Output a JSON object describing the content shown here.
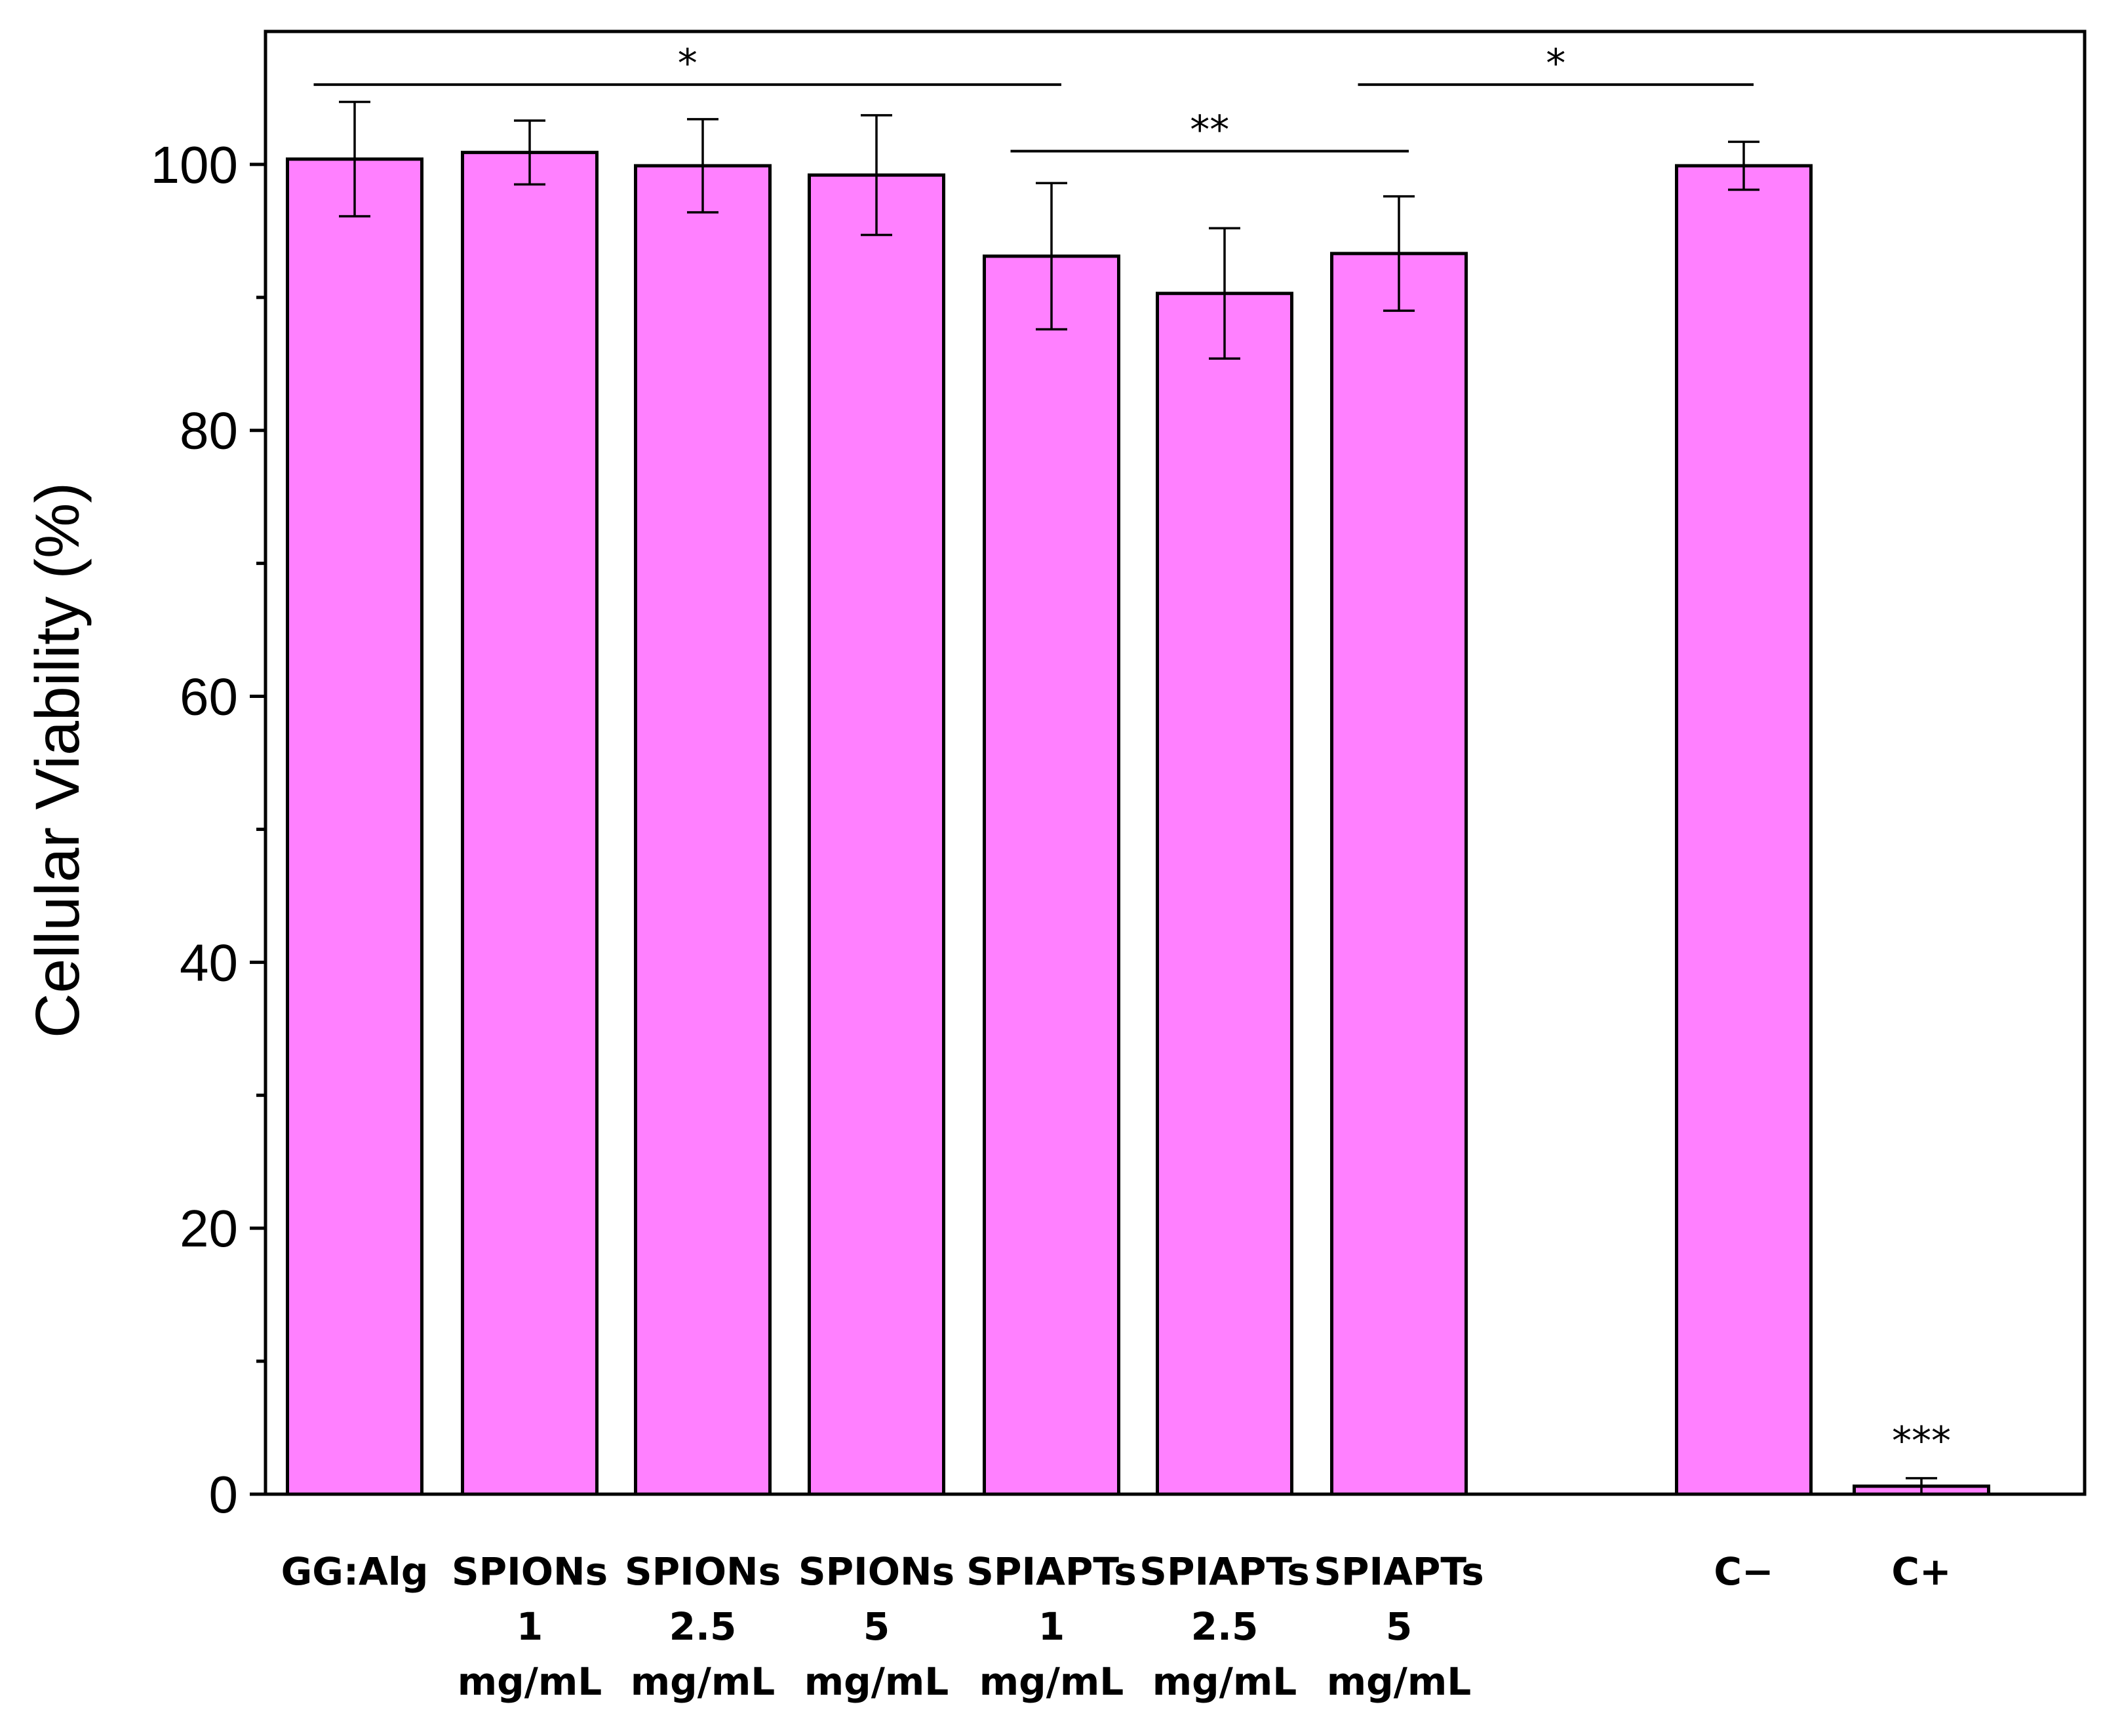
{
  "chart_data": {
    "type": "bar",
    "ylabel": "Cellular Viability (%)",
    "xlabel": "",
    "ylim": [
      0,
      110
    ],
    "yticks": [
      "0",
      "20",
      "40",
      "60",
      "80",
      "100"
    ],
    "bar_color": "#ff80ff",
    "bars": [
      {
        "label": [
          "GG:Alg"
        ],
        "value": 100.4,
        "error": 4.3
      },
      {
        "label": [
          "SPIONs",
          "1",
          "mg/mL"
        ],
        "value": 100.9,
        "error": 2.4
      },
      {
        "label": [
          "SPIONs",
          "2.5",
          "mg/mL"
        ],
        "value": 99.9,
        "error": 3.5
      },
      {
        "label": [
          "SPIONs",
          "5",
          "mg/mL"
        ],
        "value": 99.2,
        "error": 4.5
      },
      {
        "label": [
          "SPIAPTs",
          "1",
          "mg/mL"
        ],
        "value": 93.1,
        "error": 5.5
      },
      {
        "label": [
          "SPIAPTs",
          "2.5",
          "mg/mL"
        ],
        "value": 90.3,
        "error": 4.9
      },
      {
        "label": [
          "SPIAPTs",
          "5",
          "mg/mL"
        ],
        "value": 93.3,
        "error": 4.3
      },
      {
        "label": [
          "C−"
        ],
        "value": 99.9,
        "error": 1.8
      },
      {
        "label": [
          "C+"
        ],
        "value": 0.6,
        "error": 0.6
      }
    ],
    "significance": [
      {
        "text": "*",
        "from_bar": 0,
        "to_bar": 4,
        "y": 106
      },
      {
        "text": "**",
        "from_bar": 4,
        "to_bar": 6,
        "y": 101
      },
      {
        "text": "*",
        "from_bar": 6,
        "to_bar": 7,
        "y": 106
      },
      {
        "text": "***",
        "bar": 8,
        "y": 3
      }
    ]
  }
}
